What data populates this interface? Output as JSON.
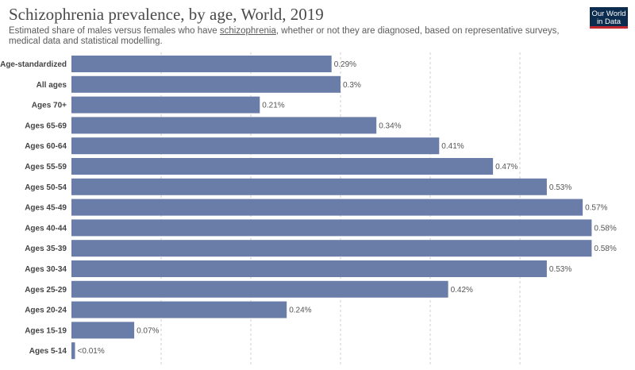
{
  "header": {
    "title": "Schizophrenia prevalence, by age, World, 2019",
    "subtitle_before": "Estimated share of males versus females who have ",
    "subtitle_link": "schizophrenia",
    "subtitle_after": ", whether or not they are diagnosed, based on representative surveys, medical data and statistical modelling.",
    "logo_line1": "Our World",
    "logo_line2": "in Data"
  },
  "colors": {
    "bar": "#6a7ca8",
    "logo_bg": "#0c2c4f",
    "logo_accent": "#c2262f"
  },
  "chart_data": {
    "type": "bar",
    "orientation": "horizontal",
    "title": "Schizophrenia prevalence, by age, World, 2019",
    "unit": "%",
    "xlim": [
      0,
      0.6
    ],
    "gridlines": [
      0.1,
      0.2,
      0.3,
      0.4,
      0.5
    ],
    "categories": [
      "Age-standardized",
      "All ages",
      "Ages 70+",
      "Ages 65-69",
      "Ages 60-64",
      "Ages 55-59",
      "Ages 50-54",
      "Ages 45-49",
      "Ages 40-44",
      "Ages 35-39",
      "Ages 30-34",
      "Ages 25-29",
      "Ages 20-24",
      "Ages 15-19",
      "Ages 5-14"
    ],
    "values": [
      0.29,
      0.3,
      0.21,
      0.34,
      0.41,
      0.47,
      0.53,
      0.57,
      0.58,
      0.58,
      0.53,
      0.42,
      0.24,
      0.07,
      0.004
    ],
    "value_labels": [
      "0.29%",
      "0.3%",
      "0.21%",
      "0.34%",
      "0.41%",
      "0.47%",
      "0.53%",
      "0.57%",
      "0.58%",
      "0.58%",
      "0.53%",
      "0.42%",
      "0.24%",
      "0.07%",
      "<0.01%"
    ]
  }
}
